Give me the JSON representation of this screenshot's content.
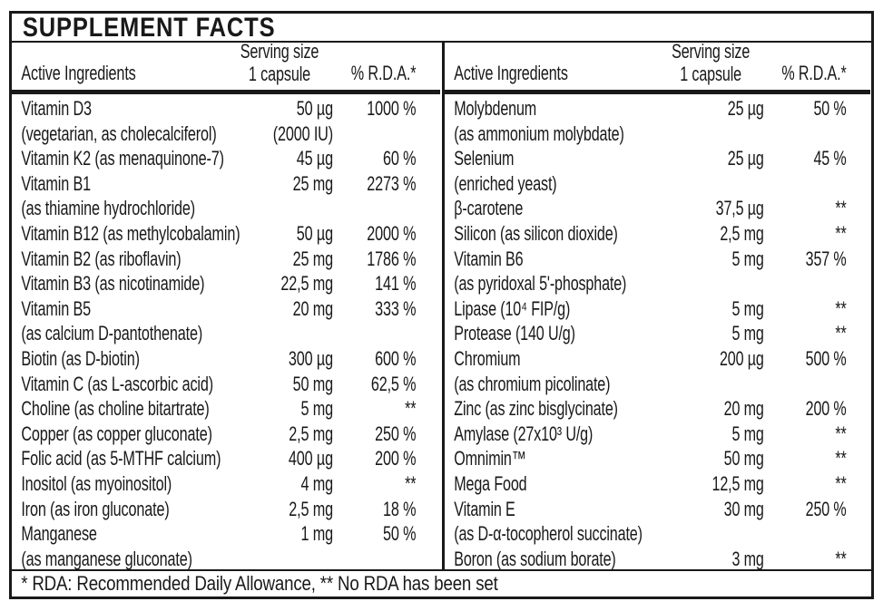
{
  "title": "SUPPLEMENT FACTS",
  "header": {
    "ingredients": "Active Ingredients",
    "serving_line1": "Serving size",
    "serving_line2": "1 capsule",
    "rda": "% R.D.A.*"
  },
  "left_rows": [
    {
      "name": "Vitamin D3",
      "amount": "50 µg",
      "rda": "1000 %"
    },
    {
      "name": "(vegetarian, as cholecalciferol)",
      "amount": "(2000 IU)",
      "rda": ""
    },
    {
      "name": "Vitamin K2 (as menaquinone-7)",
      "amount": "45 µg",
      "rda": "60 %"
    },
    {
      "name": "Vitamin B1",
      "amount": "25 mg",
      "rda": "2273 %"
    },
    {
      "name": "(as thiamine hydrochloride)",
      "amount": "",
      "rda": ""
    },
    {
      "name": "Vitamin B12 (as methylcobalamin)",
      "amount": "50 µg",
      "rda": "2000 %"
    },
    {
      "name": "Vitamin B2 (as riboflavin)",
      "amount": "25 mg",
      "rda": "1786 %"
    },
    {
      "name": "Vitamin B3 (as nicotinamide)",
      "amount": "22,5 mg",
      "rda": "141 %"
    },
    {
      "name": "Vitamin B5",
      "amount": "20 mg",
      "rda": "333 %"
    },
    {
      "name": "(as calcium D-pantothenate)",
      "amount": "",
      "rda": ""
    },
    {
      "name": "Biotin (as D-biotin)",
      "amount": "300 µg",
      "rda": "600 %"
    },
    {
      "name": "Vitamin C (as L-ascorbic acid)",
      "amount": "50 mg",
      "rda": "62,5 %"
    },
    {
      "name": "Choline (as choline bitartrate)",
      "amount": "5 mg",
      "rda": "**"
    },
    {
      "name": "Copper (as copper gluconate)",
      "amount": "2,5 mg",
      "rda": "250 %"
    },
    {
      "name": "Folic acid (as 5-MTHF calcium)",
      "amount": "400 µg",
      "rda": "200 %"
    },
    {
      "name": "Inositol (as myoinositol)",
      "amount": "4 mg",
      "rda": "**"
    },
    {
      "name": "Iron (as iron gluconate)",
      "amount": "2,5 mg",
      "rda": "18 %"
    },
    {
      "name": "Manganese",
      "amount": "1 mg",
      "rda": "50 %"
    },
    {
      "name": "(as manganese gluconate)",
      "amount": "",
      "rda": ""
    }
  ],
  "right_rows": [
    {
      "name": "Molybdenum",
      "amount": "25 µg",
      "rda": "50 %"
    },
    {
      "name": "(as ammonium molybdate)",
      "amount": "",
      "rda": ""
    },
    {
      "name": "Selenium",
      "amount": "25 µg",
      "rda": "45 %"
    },
    {
      "name": "(enriched yeast)",
      "amount": "",
      "rda": ""
    },
    {
      "name": "β-carotene",
      "amount": "37,5 µg",
      "rda": "**"
    },
    {
      "name": "Silicon (as silicon dioxide)",
      "amount": "2,5 mg",
      "rda": "**"
    },
    {
      "name": "Vitamin B6",
      "amount": "5 mg",
      "rda": "357 %"
    },
    {
      "name": "(as pyridoxal 5'-phosphate)",
      "amount": "",
      "rda": ""
    },
    {
      "name": "Lipase (10⁴ FIP/g)",
      "amount": "5 mg",
      "rda": "**"
    },
    {
      "name": "Protease (140 U/g)",
      "amount": "5 mg",
      "rda": "**"
    },
    {
      "name": "Chromium",
      "amount": "200 µg",
      "rda": "500 %"
    },
    {
      "name": "(as chromium picolinate)",
      "amount": "",
      "rda": ""
    },
    {
      "name": "Zinc (as zinc bisglycinate)",
      "amount": "20 mg",
      "rda": "200 %"
    },
    {
      "name": "Amylase (27x10³ U/g)",
      "amount": "5 mg",
      "rda": "**"
    },
    {
      "name": "Omnimin™",
      "amount": "50 mg",
      "rda": "**"
    },
    {
      "name": "Mega Food",
      "amount": "12,5 mg",
      "rda": "**"
    },
    {
      "name": "Vitamin E",
      "amount": "30 mg",
      "rda": "250 %"
    },
    {
      "name": "(as D-α-tocopherol succinate)",
      "amount": "",
      "rda": ""
    },
    {
      "name": "Boron (as sodium borate)",
      "amount": "3 mg",
      "rda": "**"
    }
  ],
  "footnote": "* RDA: Recommended Daily Allowance, ** No RDA has been set",
  "colors": {
    "border": "#191919",
    "text": "#191919",
    "background": "#ffffff"
  }
}
